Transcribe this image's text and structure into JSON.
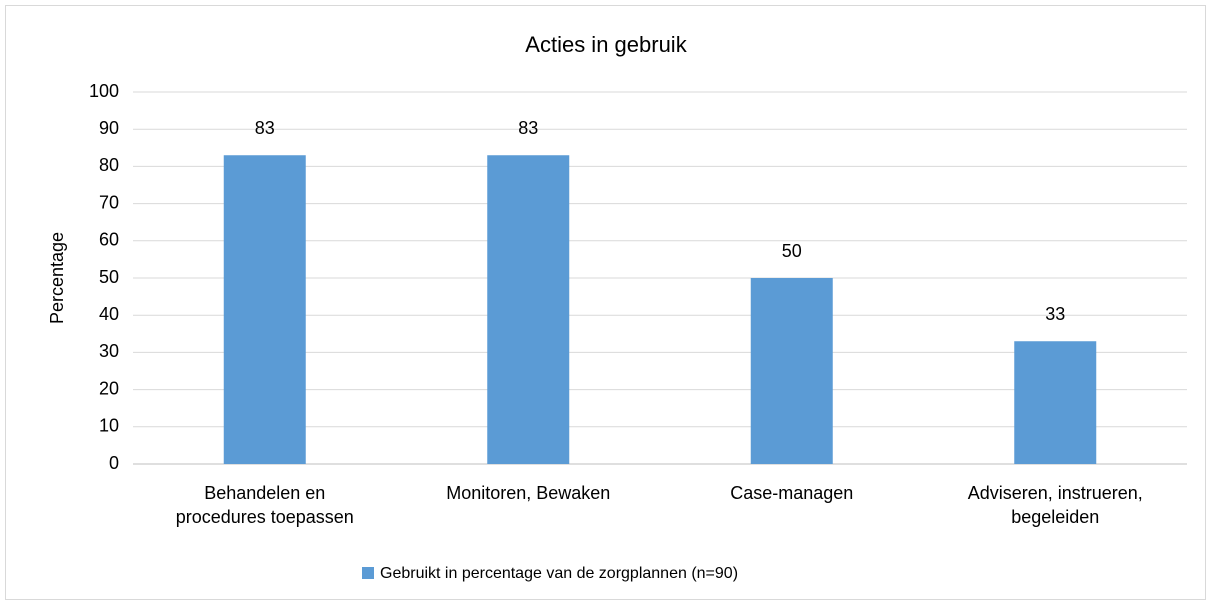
{
  "chart_data": {
    "type": "bar",
    "title": "Acties in gebruik",
    "y_label": "Percentage",
    "categories": [
      [
        "Behandelen en",
        "procedures toepassen"
      ],
      [
        "Monitoren, Bewaken"
      ],
      [
        "Case-managen"
      ],
      [
        "Adviseren, instrueren,",
        "begeleiden"
      ]
    ],
    "series": [
      {
        "name": "Gebruikt in percentage van de zorgplannen (n=90)",
        "color": "#5b9bd5",
        "values": [
          83,
          83,
          50,
          33
        ]
      }
    ],
    "ylim": [
      0,
      100
    ],
    "yticks": [
      0,
      10,
      20,
      30,
      40,
      50,
      60,
      70,
      80,
      90,
      100
    ],
    "grid": true,
    "legend": "bottom"
  }
}
